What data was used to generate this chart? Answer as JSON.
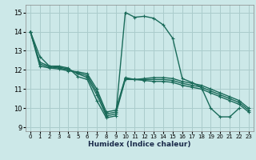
{
  "bg_color": "#cce8e8",
  "grid_color": "#aacccc",
  "line_color": "#1a6b5a",
  "marker": "+",
  "markersize": 3,
  "linewidth": 1.0,
  "xlabel": "Humidex (Indice chaleur)",
  "xlim": [
    -0.5,
    23.5
  ],
  "ylim": [
    8.8,
    15.4
  ],
  "yticks": [
    9,
    10,
    11,
    12,
    13,
    14,
    15
  ],
  "xticks": [
    0,
    1,
    2,
    3,
    4,
    5,
    6,
    7,
    8,
    9,
    10,
    11,
    12,
    13,
    14,
    15,
    16,
    17,
    18,
    19,
    20,
    21,
    22,
    23
  ],
  "lines": [
    {
      "x": [
        0,
        1,
        2,
        3,
        4,
        5,
        6,
        7,
        8,
        9,
        10,
        11,
        12,
        13,
        14,
        15,
        16,
        17,
        18,
        19,
        20,
        21,
        22
      ],
      "y": [
        14.0,
        12.7,
        12.2,
        12.2,
        12.1,
        11.65,
        11.5,
        10.4,
        9.5,
        9.6,
        15.0,
        14.75,
        14.8,
        14.7,
        14.35,
        13.65,
        11.55,
        11.35,
        11.1,
        10.0,
        9.55,
        9.55,
        10.0
      ]
    },
    {
      "x": [
        0,
        1,
        2,
        3,
        4,
        5,
        6,
        7,
        8,
        9,
        10,
        11,
        12,
        13,
        14,
        15,
        16,
        17,
        18,
        19,
        20,
        21,
        22,
        23
      ],
      "y": [
        14.0,
        12.4,
        12.2,
        12.15,
        12.05,
        11.8,
        11.6,
        10.7,
        9.6,
        9.7,
        11.5,
        11.5,
        11.55,
        11.6,
        11.6,
        11.55,
        11.4,
        11.3,
        11.2,
        11.0,
        10.8,
        10.6,
        10.4,
        10.0
      ]
    },
    {
      "x": [
        0,
        1,
        2,
        3,
        4,
        5,
        6,
        7,
        8,
        9,
        10,
        11,
        12,
        13,
        14,
        15,
        16,
        17,
        18,
        19,
        20,
        21,
        22,
        23
      ],
      "y": [
        14.0,
        12.3,
        12.15,
        12.1,
        12.0,
        11.85,
        11.7,
        10.85,
        9.7,
        9.8,
        11.55,
        11.5,
        11.5,
        11.5,
        11.5,
        11.45,
        11.3,
        11.2,
        11.1,
        10.9,
        10.7,
        10.5,
        10.3,
        9.9
      ]
    },
    {
      "x": [
        0,
        1,
        2,
        3,
        4,
        5,
        6,
        7,
        8,
        9,
        10,
        11,
        12,
        13,
        14,
        15,
        16,
        17,
        18,
        19,
        20,
        21,
        22,
        23
      ],
      "y": [
        14.0,
        12.2,
        12.1,
        12.05,
        11.95,
        11.9,
        11.8,
        11.0,
        9.8,
        9.9,
        11.6,
        11.5,
        11.45,
        11.4,
        11.4,
        11.35,
        11.2,
        11.1,
        11.0,
        10.8,
        10.6,
        10.4,
        10.2,
        9.8
      ]
    }
  ]
}
